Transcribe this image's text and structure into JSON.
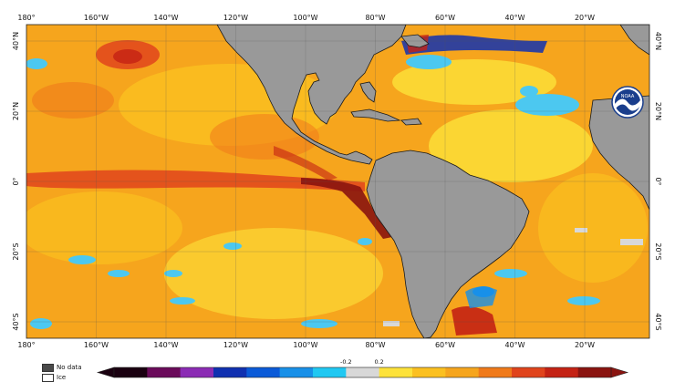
{
  "map": {
    "colors": {
      "ocean_warm": "#f6a51d",
      "ocean_hot": "#e0441c",
      "ocean_very_hot": "#8a1410",
      "ocean_neutral": "#fde23a",
      "ocean_cool": "#4cc8f0",
      "land": "#999999",
      "coast": "#1a1a1a"
    },
    "top_lon_labels": [
      "180°",
      "160°W",
      "140°W",
      "120°W",
      "100°W",
      "80°W",
      "60°W",
      "40°W",
      "20°W"
    ],
    "bottom_lon_labels": [
      "180°",
      "160°W",
      "140°W",
      "120°W",
      "100°W",
      "80°W",
      "60°W",
      "40°W",
      "20°W"
    ],
    "left_lat_labels": [
      "40°N",
      "20°N",
      "0°",
      "20°S",
      "40°S"
    ],
    "right_lat_labels": [
      "40°N",
      "20°N",
      "0°",
      "20°S",
      "40°S"
    ],
    "logo_text": "NOAA"
  },
  "legend": {
    "no_data": "No data",
    "ice": "Ice"
  },
  "colorbar": {
    "labels": [
      "-0.2",
      "0.2"
    ],
    "colors": [
      "#1a0010",
      "#6a0a5a",
      "#8b2bb4",
      "#1030b0",
      "#0a5ad8",
      "#1890e8",
      "#20c8f2",
      "#d8d8d8",
      "#fde23a",
      "#fbc020",
      "#f6a51d",
      "#f07a1a",
      "#e0441c",
      "#c42214",
      "#8a1410"
    ]
  }
}
